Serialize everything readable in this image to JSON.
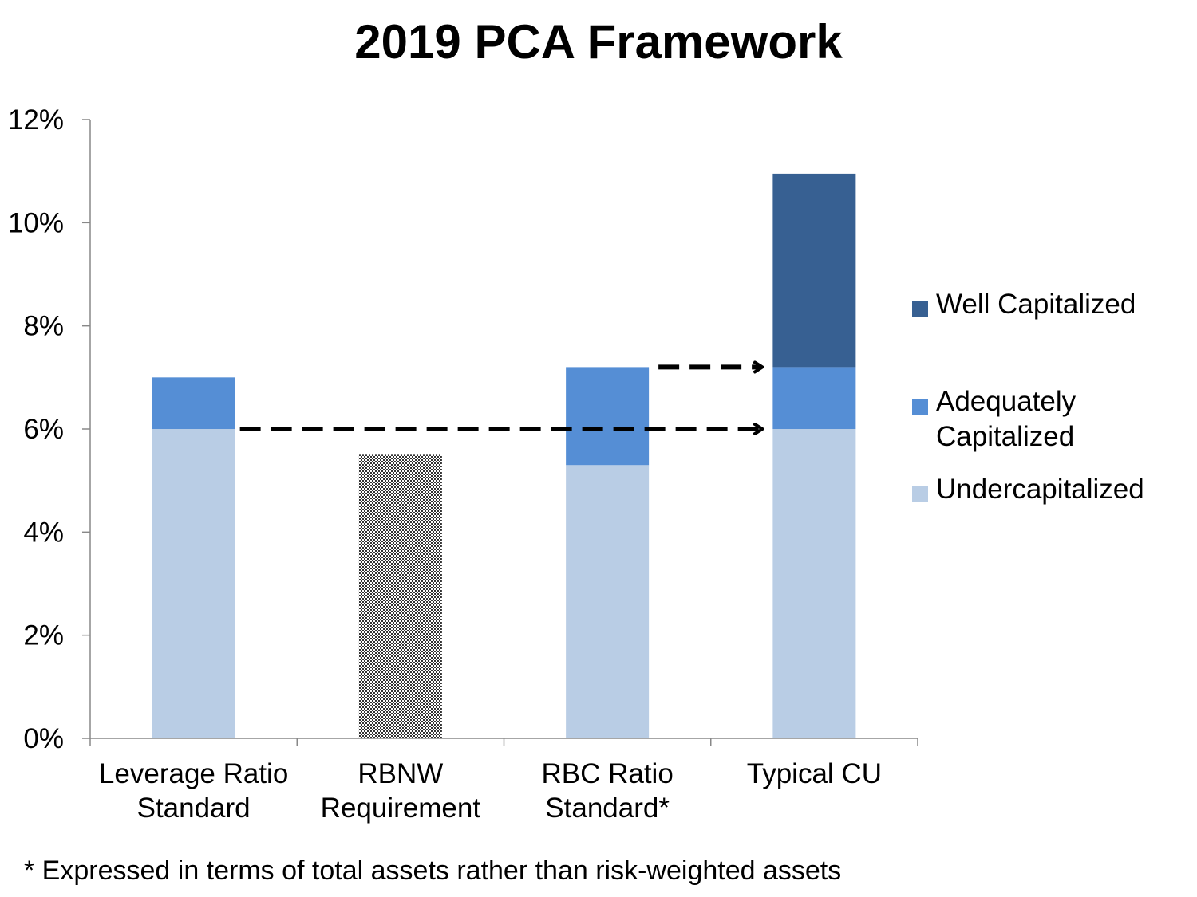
{
  "chart_data": {
    "type": "bar",
    "stacked": true,
    "title": "2019 PCA Framework",
    "xlabel": "",
    "ylabel": "",
    "ylim": [
      0,
      12
    ],
    "yticks": [
      "0%",
      "2%",
      "4%",
      "6%",
      "8%",
      "10%",
      "12%"
    ],
    "categories": [
      [
        "Leverage Ratio",
        "Standard"
      ],
      [
        "RBNW",
        "Requirement"
      ],
      [
        "RBC Ratio",
        "Standard*"
      ],
      [
        "Typical CU"
      ]
    ],
    "series": [
      {
        "name": "Undercapitalized",
        "color": "#b9cde5",
        "values": [
          6.0,
          0,
          5.3,
          6.0
        ]
      },
      {
        "name": "Adequately Capitalized",
        "color": "#558ed5",
        "values": [
          1.0,
          0,
          1.9,
          1.2
        ]
      },
      {
        "name": "Well Capitalized",
        "color": "#376092",
        "values": [
          0,
          0,
          0,
          3.75
        ]
      }
    ],
    "other_bars": [
      {
        "category_index": 1,
        "value": 5.5,
        "fill": "hatched"
      }
    ],
    "legend": {
      "position": "right",
      "entries": [
        "Well Capitalized",
        "Adequately Capitalized",
        "Undercapitalized"
      ],
      "label_lines": [
        [
          "Well Capitalized"
        ],
        [
          "Adequately",
          "Capitalized"
        ],
        [
          "Undercapitalized"
        ]
      ]
    },
    "annotations": [
      {
        "type": "dashed-arrow",
        "from_category": 0,
        "to_category": 3,
        "y": 6.0
      },
      {
        "type": "dashed-arrow",
        "from_category": 2,
        "to_category": 3,
        "y": 7.2
      }
    ],
    "footnote": "* Expressed in terms of total assets rather than risk-weighted assets",
    "grid": false
  }
}
